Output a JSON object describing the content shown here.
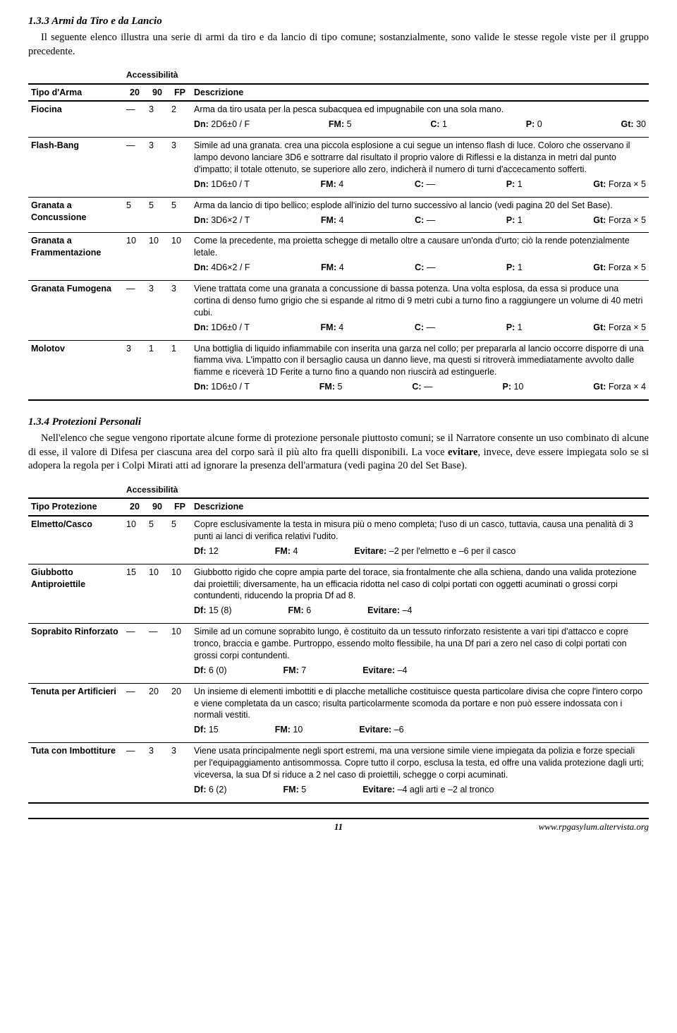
{
  "section1": {
    "title": "1.3.3 Armi da Tiro e da Lancio",
    "intro": "Il seguente elenco illustra una serie di armi da tiro e da lancio di tipo comune; sostanzialmente, sono valide le stesse regole viste per il gruppo precedente.",
    "acc_label": "Accessibilità",
    "h_type": "Tipo d'Arma",
    "h_20": "20",
    "h_90": "90",
    "h_fp": "FP",
    "h_desc": "Descrizione",
    "rows": [
      {
        "name": "Fiocina",
        "c20": "—",
        "c90": "3",
        "cfp": "2",
        "desc": "Arma da tiro usata per la pesca subacquea ed impugnabile con una sola mano.",
        "dn": "2D6±0 / F",
        "fm": "5",
        "c": "1",
        "p": "0",
        "gt": "30"
      },
      {
        "name": "Flash-Bang",
        "c20": "—",
        "c90": "3",
        "cfp": "3",
        "desc": "Simile ad una granata. crea una piccola esplosione a cui segue un intenso flash di luce. Coloro che osservano il lampo devono lanciare 3D6 e sottrarre dal risultato il proprio valore di Riflessi e la distanza in metri dal punto d'impatto; il totale ottenuto, se superiore allo zero, indicherà il numero di turni d'accecamento sofferti.",
        "dn": "1D6±0 / T",
        "fm": "4",
        "c": "—",
        "p": "1",
        "gt": "Forza × 5"
      },
      {
        "name": "Granata a Concussione",
        "c20": "5",
        "c90": "5",
        "cfp": "5",
        "desc": "Arma da lancio di tipo bellico; esplode all'inizio del turno successivo al lancio (vedi pagina 20 del Set Base).",
        "dn": "3D6×2 / T",
        "fm": "4",
        "c": "—",
        "p": "1",
        "gt": "Forza × 5"
      },
      {
        "name": "Granata a Frammentazione",
        "c20": "10",
        "c90": "10",
        "cfp": "10",
        "desc": "Come la precedente, ma proietta schegge di metallo oltre a causare un'onda d'urto; ciò la rende potenzialmente letale.",
        "dn": "4D6×2 / F",
        "fm": "4",
        "c": "—",
        "p": "1",
        "gt": "Forza × 5"
      },
      {
        "name": "Granata Fumogena",
        "c20": "—",
        "c90": "3",
        "cfp": "3",
        "desc": "Viene trattata come una granata a concussione di bassa potenza. Una volta esplosa, da essa si produce una cortina di denso fumo grigio che si espande al ritmo di 9 metri cubi a turno fino a raggiungere un volume di 40 metri cubi.",
        "dn": "1D6±0 / T",
        "fm": "4",
        "c": "—",
        "p": "1",
        "gt": "Forza × 5"
      },
      {
        "name": "Molotov",
        "c20": "3",
        "c90": "1",
        "cfp": "1",
        "desc": "Una bottiglia di liquido infiammabile con inserita una garza nel collo; per prepararla al lancio occorre disporre di una fiamma viva. L'impatto con il bersaglio causa un danno lieve, ma questi si ritroverà immediatamente avvolto dalle fiamme e riceverà 1D Ferite a turno fino a quando non riuscirà ad estinguerle.",
        "dn": "1D6±0 / T",
        "fm": "5",
        "c": "—",
        "p": "10",
        "gt": "Forza × 4"
      }
    ]
  },
  "labels": {
    "dn": "Dn:",
    "fm": "FM:",
    "c": "C:",
    "p": "P:",
    "gt": "Gt:",
    "df": "Df:",
    "ev": "Evitare:"
  },
  "section2": {
    "title": "1.3.4 Protezioni Personali",
    "intro_a": "Nell'elenco che segue vengono riportate alcune forme di protezione personale piuttosto comuni; se il Narratore consente un uso combinato di alcune di esse, il valore di Difesa per ciascuna area del corpo sarà il più alto fra quelli disponibili. La voce ",
    "intro_bold": "evitare",
    "intro_b": ", invece, deve essere impiegata solo se si adopera la regola per i Colpi Mirati atti ad ignorare la presenza dell'armatura (vedi pagina 20 del Set Base).",
    "acc_label": "Accessibilità",
    "h_type": "Tipo Protezione",
    "h_20": "20",
    "h_90": "90",
    "h_fp": "FP",
    "h_desc": "Descrizione",
    "rows": [
      {
        "name": "Elmetto/Casco",
        "c20": "10",
        "c90": "5",
        "cfp": "5",
        "desc": "Copre esclusivamente la testa in misura più o meno completa; l'uso di un casco, tuttavia, causa una penalità di 3 punti ai lanci di verifica relativi l'udito.",
        "df": "12",
        "fm": "4",
        "ev": "–2 per l'elmetto e –6 per il casco"
      },
      {
        "name": "Giubbotto Antiproiettile",
        "c20": "15",
        "c90": "10",
        "cfp": "10",
        "desc": "Giubbotto rigido che copre ampia parte del torace, sia frontalmente che alla schiena, dando una valida protezione dai proiettili; diversamente, ha un efficacia ridotta nel caso di colpi portati con oggetti acuminati o grossi corpi contundenti, riducendo la propria Df ad 8.",
        "df": "15 (8)",
        "fm": "6",
        "ev": "–4"
      },
      {
        "name": "Soprabito Rinforzato",
        "c20": "—",
        "c90": "—",
        "cfp": "10",
        "desc": "Simile ad un comune soprabito lungo, è costituito da un tessuto rinforzato resistente a vari tipi d'attacco e copre tronco, braccia e gambe. Purtroppo, essendo molto flessibile, ha una Df pari a zero nel caso di colpi portati con grossi corpi contundenti.",
        "df": "6 (0)",
        "fm": "7",
        "ev": "–4"
      },
      {
        "name": "Tenuta per Artificieri",
        "c20": "—",
        "c90": "20",
        "cfp": "20",
        "desc": "Un insieme di elementi imbottiti e di placche metalliche costituisce questa particolare divisa che copre l'intero corpo e viene completata da un casco; risulta particolarmente scomoda da portare e non può essere indossata con i normali vestiti.",
        "df": "15",
        "fm": "10",
        "ev": "–6"
      },
      {
        "name": "Tuta con Imbottiture",
        "c20": "—",
        "c90": "3",
        "cfp": "3",
        "desc": "Viene usata principalmente negli sport estremi, ma una versione simile viene impiegata da polizia e forze speciali per l'equipaggiamento antisommossa. Copre tutto il corpo, esclusa la testa, ed offre una valida protezione dagli urti; viceversa, la sua Df si riduce a 2 nel caso di proiettili, schegge o corpi acuminati.",
        "df": "6 (2)",
        "fm": "5",
        "ev": "–4 agli arti e –2 al tronco"
      }
    ]
  },
  "footer": {
    "page": "11",
    "url": "www.rpgasylum.altervista.org"
  }
}
